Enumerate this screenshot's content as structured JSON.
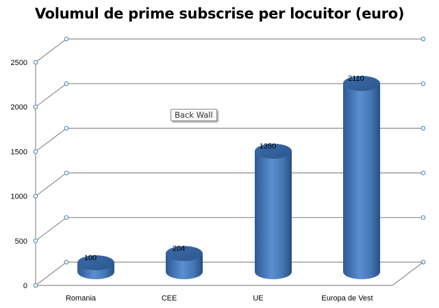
{
  "chart_data": {
    "type": "bar",
    "subtype": "3d-cylinder",
    "title": "Volumul de prime subscrise per locuitor (euro)",
    "xlabel": "",
    "ylabel": "",
    "categories": [
      "Romania",
      "CEE",
      "UE",
      "Europa de Vest"
    ],
    "values": [
      100,
      204,
      1350,
      2110
    ],
    "data_labels": [
      "100",
      "204",
      "1350",
      "2110"
    ],
    "yticks": [
      "0",
      "500",
      "1000",
      "1500",
      "2000",
      "2500"
    ],
    "ylim": [
      0,
      2500
    ],
    "grid": true,
    "legend": null,
    "bar_color": "#4a7ebb"
  },
  "tooltip": {
    "label": "Back Wall"
  }
}
